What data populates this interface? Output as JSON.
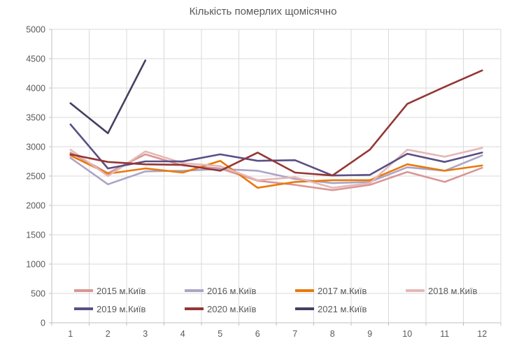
{
  "title": "Кількість померлих щомісячно",
  "chart_data": {
    "type": "line",
    "title": "Кількість померлих щомісячно",
    "categories": [
      "1",
      "2",
      "3",
      "4",
      "5",
      "6",
      "7",
      "8",
      "9",
      "10",
      "11",
      "12"
    ],
    "xlabel": "",
    "ylabel": "",
    "ylim": [
      0,
      5000
    ],
    "ytick_step": 500,
    "ytick_labels": [
      "0",
      "500",
      "1000",
      "1500",
      "2000",
      "2500",
      "3000",
      "3500",
      "4000",
      "4500",
      "5000"
    ],
    "grid": true,
    "legend_position": "bottom-inside",
    "colors": {
      "grid": "#d9d9d9",
      "axis": "#bfbfbf",
      "text": "#595959",
      "background": "#ffffff"
    },
    "series": [
      {
        "name": "2015 м.Київ",
        "color": "#d99694",
        "values": [
          2900,
          2550,
          2870,
          2680,
          2630,
          2420,
          2350,
          2260,
          2350,
          2570,
          2400,
          2640
        ]
      },
      {
        "name": "2016 м.Київ",
        "color": "#aca4c6",
        "values": [
          2810,
          2360,
          2580,
          2590,
          2620,
          2590,
          2450,
          2380,
          2400,
          2650,
          2590,
          2850
        ]
      },
      {
        "name": "2017 м.Київ",
        "color": "#e8790c",
        "values": [
          2850,
          2540,
          2630,
          2560,
          2760,
          2300,
          2400,
          2430,
          2430,
          2700,
          2590,
          2680
        ]
      },
      {
        "name": "2018 м.Київ",
        "color": "#e5b8b7",
        "values": [
          2950,
          2500,
          2920,
          2720,
          2670,
          2430,
          2480,
          2300,
          2380,
          2950,
          2830,
          2980
        ]
      },
      {
        "name": "2019 м.Київ",
        "color": "#5a4f84",
        "values": [
          3380,
          2630,
          2750,
          2750,
          2870,
          2760,
          2770,
          2510,
          2520,
          2880,
          2740,
          2900
        ]
      },
      {
        "name": "2020 м.Київ",
        "color": "#943634",
        "values": [
          2870,
          2740,
          2700,
          2690,
          2590,
          2900,
          2560,
          2510,
          2950,
          3730,
          4020,
          4300
        ]
      },
      {
        "name": "2021 м.Київ",
        "color": "#454060",
        "values": [
          3740,
          3230,
          4470,
          null,
          null,
          null,
          null,
          null,
          null,
          null,
          null,
          null
        ]
      }
    ]
  }
}
